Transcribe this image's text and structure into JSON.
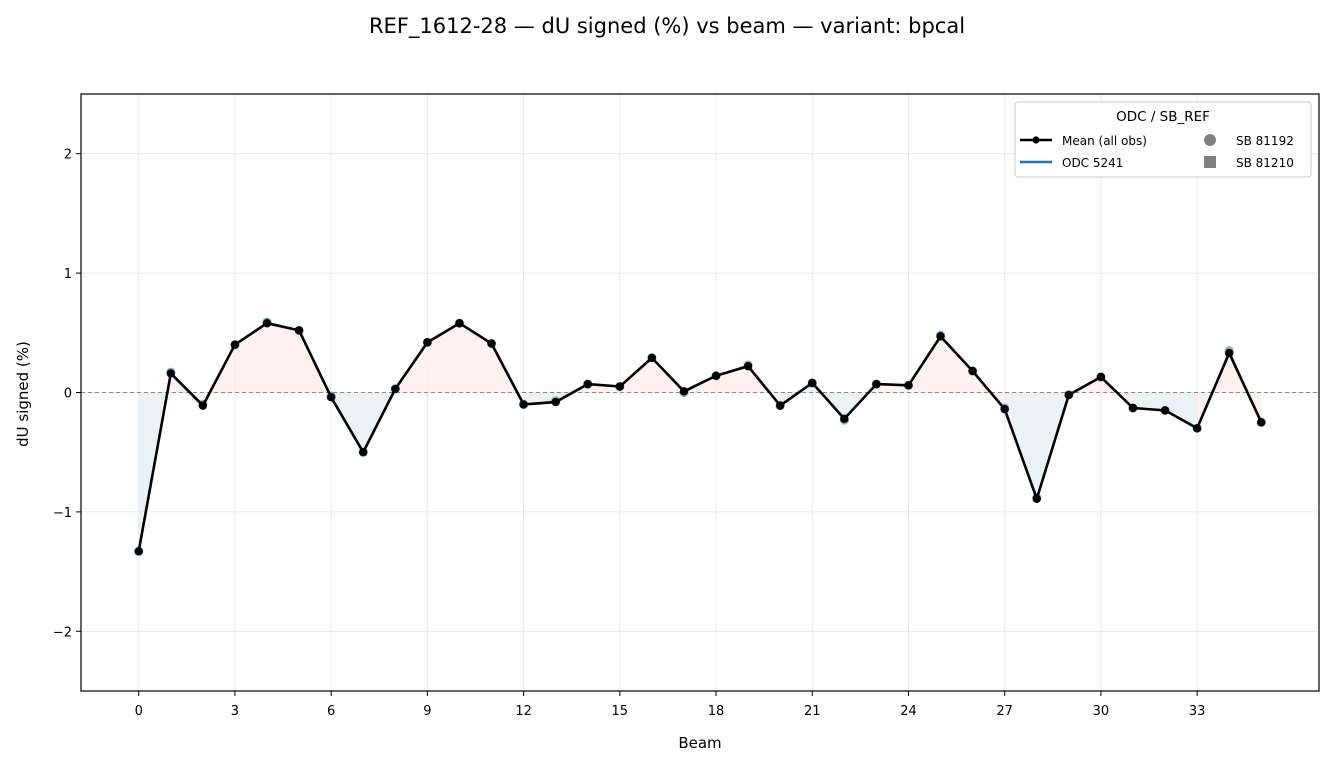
{
  "chart_data": {
    "type": "line",
    "title": "REF_1612-28  —  dU signed (%) vs beam  —  variant: bpcal",
    "xlabel": "Beam",
    "ylabel": "dU signed (%)",
    "xlim": [
      -1.8,
      36.8
    ],
    "ylim": [
      -2.5,
      2.5
    ],
    "xticks": [
      0,
      3,
      6,
      9,
      12,
      15,
      18,
      21,
      24,
      27,
      30,
      33
    ],
    "yticks": [
      -2,
      -1,
      0,
      1,
      2
    ],
    "ytick_labels": [
      "−2",
      "−1",
      "0",
      "1",
      "2"
    ],
    "grid": true,
    "reference_line_y": 0,
    "legend": {
      "title": "ODC / SB_REF",
      "position": "top-right",
      "entries": [
        "Mean (all obs)",
        "ODC 5241",
        "SB 81192",
        "SB 81210"
      ]
    },
    "colors": {
      "mean": "#000000",
      "odc": "#1f77b4",
      "positive_fill": "#fdecea",
      "negative_fill": "#e4eef3",
      "sb_marker": "#808080"
    },
    "x": [
      0,
      1,
      2,
      3,
      4,
      5,
      6,
      7,
      8,
      9,
      10,
      11,
      12,
      13,
      14,
      15,
      16,
      17,
      18,
      19,
      20,
      21,
      22,
      23,
      24,
      25,
      26,
      27,
      28,
      29,
      30,
      31,
      32,
      33,
      34,
      35
    ],
    "series": [
      {
        "name": "Mean (all obs)",
        "values": [
          -1.33,
          0.16,
          -0.11,
          0.4,
          0.58,
          0.52,
          -0.04,
          -0.5,
          0.03,
          0.42,
          0.58,
          0.41,
          -0.1,
          -0.08,
          0.07,
          0.05,
          0.29,
          0.01,
          0.14,
          0.22,
          -0.11,
          0.08,
          -0.22,
          0.07,
          0.06,
          0.47,
          0.18,
          -0.14,
          -0.89,
          -0.02,
          0.13,
          -0.13,
          -0.15,
          -0.3,
          0.33,
          -0.25
        ]
      },
      {
        "name": "ODC 5241",
        "values": [
          -1.33,
          0.17,
          -0.1,
          0.4,
          0.59,
          0.52,
          -0.03,
          -0.5,
          0.03,
          0.42,
          0.58,
          0.41,
          -0.1,
          -0.07,
          0.07,
          0.05,
          0.29,
          0.0,
          0.14,
          0.23,
          -0.11,
          0.08,
          -0.23,
          0.07,
          0.06,
          0.48,
          0.18,
          -0.13,
          -0.88,
          -0.02,
          0.13,
          -0.13,
          -0.15,
          -0.3,
          0.35,
          -0.25
        ]
      }
    ]
  }
}
